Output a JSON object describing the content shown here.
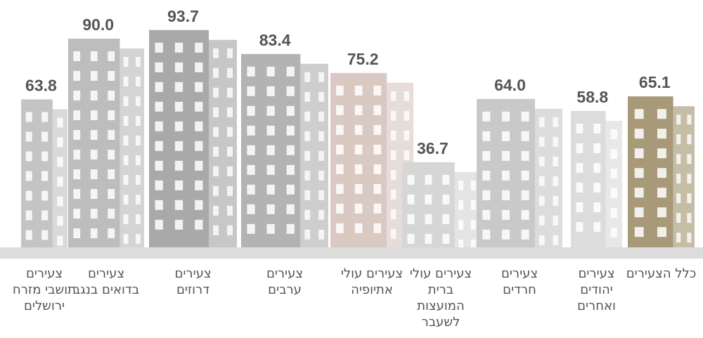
{
  "chart_data": {
    "type": "bar",
    "categories": [
      "צעירים תושבי מזרח ירושלים",
      "צעירים בדואים בנגב",
      "צעירים דרוזים",
      "צעירים ערבים",
      "צעירים עולי אתיופיה",
      "צעירים עולי ברית המועצות לשעבר",
      "צעירים חרדים",
      "צעירים יהודים ואחרים",
      "כלל הצעירים"
    ],
    "values": [
      63.8,
      90.0,
      93.7,
      83.4,
      75.2,
      36.7,
      64.0,
      58.8,
      65.1
    ],
    "value_labels": [
      "63.8",
      "90.0",
      "93.7",
      "83.4",
      "75.2",
      "36.7",
      "64.0",
      "58.8",
      "65.1"
    ],
    "colors": [
      "#c4c4c4",
      "#bdbdbd",
      "#a9a9a9",
      "#b3b3b3",
      "#d9c9c3",
      "#d6d6d6",
      "#c9c9c9",
      "#dcdcdc",
      "#a89a78"
    ],
    "ylim": [
      0,
      100
    ]
  }
}
